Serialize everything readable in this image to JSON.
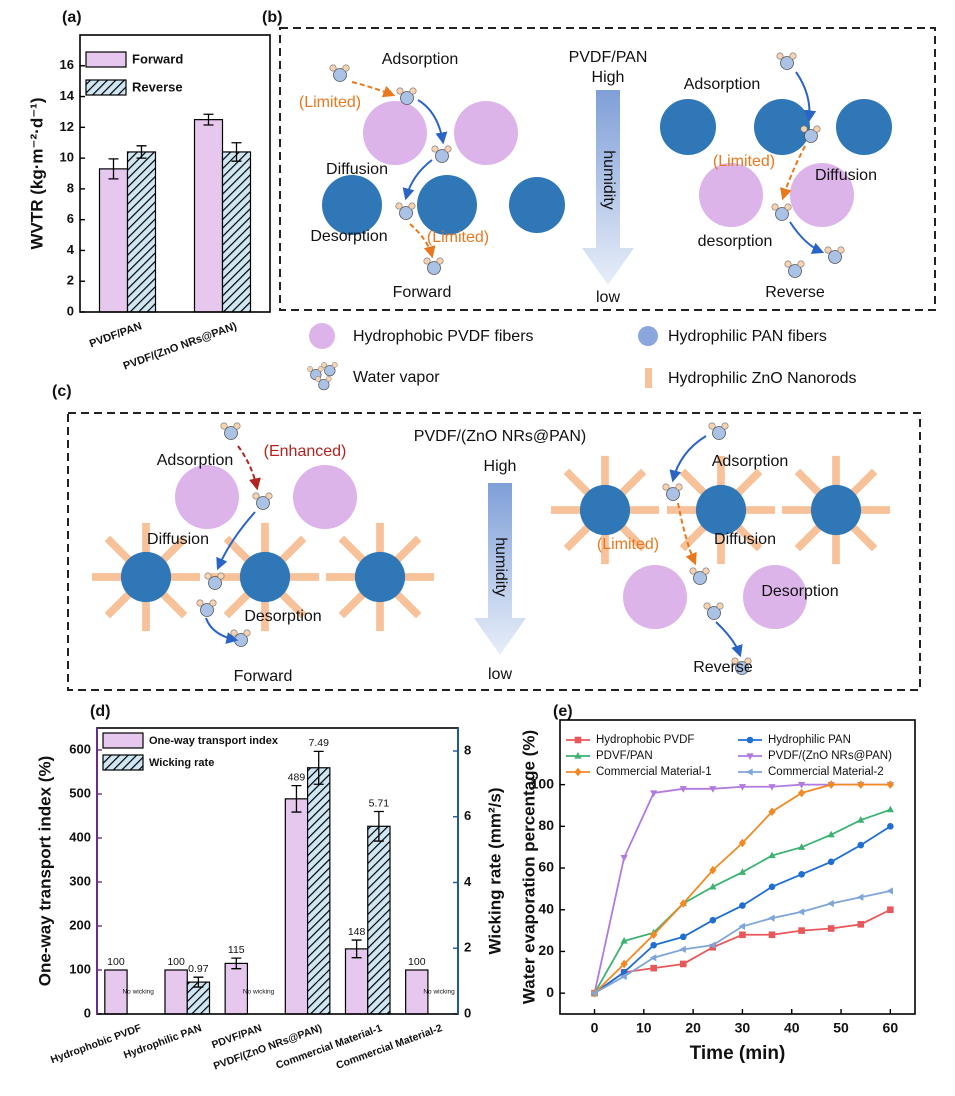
{
  "chart_data": [
    {
      "type": "bar",
      "label": "(a)",
      "ylabel": "WVTR (kg·m⁻²·d⁻¹)",
      "categories": [
        "PVDF/PAN",
        "PVDF/(ZnO NRs@PAN)"
      ],
      "series": [
        {
          "name": "Forward",
          "color": "#e6c8ef",
          "values": [
            9.3,
            12.5
          ],
          "errors": [
            0.65,
            0.35
          ]
        },
        {
          "name": "Reverse",
          "color": "#cfe6f3",
          "hatch": true,
          "values": [
            10.4,
            10.4
          ],
          "errors": [
            0.4,
            0.6
          ]
        }
      ],
      "ylim": [
        0,
        18
      ],
      "yticks": [
        0,
        2,
        4,
        6,
        8,
        10,
        12,
        14,
        16
      ],
      "legend": "upper left"
    },
    {
      "type": "bar",
      "label": "(d)",
      "ylabel": "One-way transport index (%)",
      "y2label": "Wicking rate (mm²/s)",
      "y_color": "#6a2c8c",
      "y2_color": "#1d5a96",
      "categories": [
        "Hydrophobic PVDF",
        "Hydrophilic PAN",
        "PDVF/PAN",
        "PVDF/(ZnO NRs@PAN)",
        "Commercial Material-1",
        "Commercial Material-2"
      ],
      "series": [
        {
          "name": "One-way transport index",
          "color": "#e6c8ef",
          "values": [
            100,
            100,
            115,
            489,
            148,
            100
          ],
          "errors": [
            null,
            null,
            12,
            30,
            20,
            null
          ]
        },
        {
          "name": "Wicking rate",
          "color": "#cfe6f3",
          "hatch": true,
          "axis": "y2",
          "values": [
            null,
            0.97,
            null,
            7.49,
            5.71,
            null
          ],
          "value_labels": [
            "No wicking",
            "0.97",
            "No wicking",
            "7.49",
            "5.71",
            "No wicking"
          ],
          "errors": [
            null,
            0.15,
            null,
            0.5,
            0.45,
            null
          ]
        }
      ],
      "ylim": [
        0,
        650
      ],
      "yticks": [
        0,
        100,
        200,
        300,
        400,
        500,
        600
      ],
      "y2lim": [
        0,
        8.7
      ],
      "y2ticks": [
        0,
        2,
        4,
        6,
        8
      ],
      "data_labels": true,
      "legend": "upper left"
    },
    {
      "type": "line",
      "label": "(e)",
      "xlabel": "Time (min)",
      "ylabel": "Water evaporation percentage (%)",
      "x": [
        0,
        6,
        12,
        18,
        24,
        30,
        36,
        42,
        48,
        54,
        60
      ],
      "series": [
        {
          "name": "Hydrophobic PVDF",
          "color": "#e8585a",
          "marker": "square",
          "values": [
            0,
            10,
            12,
            14,
            22,
            28,
            28,
            30,
            31,
            33,
            40
          ]
        },
        {
          "name": "Hydrophilic PAN",
          "color": "#1f6fd1",
          "marker": "circle",
          "values": [
            0,
            10,
            23,
            27,
            35,
            42,
            51,
            57,
            63,
            71,
            80
          ]
        },
        {
          "name": "PDVF/PAN",
          "color": "#3cb371",
          "marker": "triangle-up",
          "values": [
            0,
            25,
            29,
            43,
            51,
            58,
            66,
            70,
            76,
            83,
            88
          ]
        },
        {
          "name": "PVDF/(ZnO NRs@PAN)",
          "color": "#b07ae0",
          "marker": "triangle-down",
          "values": [
            0,
            65,
            96,
            98,
            98,
            99,
            99,
            100,
            100,
            100,
            100
          ]
        },
        {
          "name": "Commercial Material-1",
          "color": "#f08a24",
          "marker": "diamond",
          "values": [
            0,
            14,
            28,
            43,
            59,
            72,
            87,
            96,
            100,
            100,
            100
          ]
        },
        {
          "name": "Commercial Material-2",
          "color": "#7ea6d8",
          "marker": "triangle-left",
          "values": [
            0,
            8,
            17,
            21,
            23,
            32,
            36,
            39,
            43,
            46,
            49
          ]
        }
      ],
      "xlim": [
        -7,
        65
      ],
      "xticks": [
        0,
        10,
        20,
        30,
        40,
        50,
        60
      ],
      "ylim": [
        -10,
        131
      ],
      "yticks": [
        0,
        20,
        40,
        60,
        80,
        100
      ],
      "legend": "upper left"
    }
  ],
  "diagram_b": {
    "label": "(b)",
    "forward": {
      "adsorption": "Adsorption",
      "limited_1": "(Limited)",
      "diffusion": "Diffusion",
      "desorption": "Desorption",
      "limited_2": "(Limited)",
      "caption": "Forward"
    },
    "center": {
      "title": "PVDF/PAN",
      "high": "High",
      "humidity": "humidity",
      "low": "low"
    },
    "reverse": {
      "adsorption": "Adsorption",
      "limited": "(Limited)",
      "diffusion": "Diffusion",
      "desorption": "desorption",
      "caption": "Reverse"
    }
  },
  "legend": {
    "pvdf": "Hydrophobic PVDF fibers",
    "pan": "Hydrophilic PAN fibers",
    "water": "Water vapor",
    "zno": "Hydrophilic ZnO Nanorods"
  },
  "diagram_c": {
    "label": "(c)",
    "title": "PVDF/(ZnO NRs@PAN)",
    "forward": {
      "adsorption": "Adsorption",
      "enhanced": "(Enhanced)",
      "diffusion": "Diffusion",
      "desorption": "Desorption",
      "caption": "Forward"
    },
    "center": {
      "high": "High",
      "humidity": "humidity",
      "low": "low"
    },
    "reverse": {
      "adsorption": "Adsorption",
      "limited": "(Limited)",
      "diffusion": "Diffusion",
      "desorption": "Desorption",
      "caption": "Reverse"
    }
  }
}
